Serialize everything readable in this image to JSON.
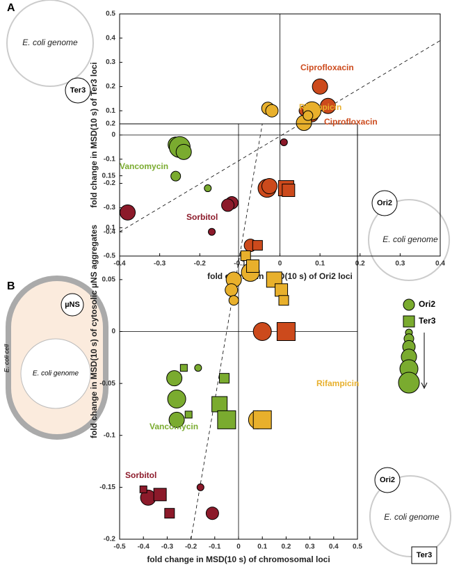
{
  "panel_labels": [
    "A",
    "B"
  ],
  "schematics": {
    "a_genome_1": "E. coli genome",
    "a_ter3": "Ter3",
    "a_genome_2": "E. coli genome",
    "a_ori2": "Ori2",
    "b_cell": "E. coli cell",
    "b_mns": "µNS",
    "b_genome_1": "E. coli genome",
    "b_genome_2": "E. coli genome",
    "b_ori2": "Ori2",
    "b_ter3": "Ter3"
  },
  "chart_data": [
    {
      "type": "scatter",
      "x_label": "fold change in MSD(10 s) of Ori2 loci",
      "y_label": "fold change in MSD(10 s) of Ter3 loci",
      "xlim": [
        -0.4,
        0.4
      ],
      "xticks": [
        -0.4,
        -0.3,
        -0.2,
        -0.1,
        0,
        0.1,
        0.2,
        0.3,
        0.4
      ],
      "ylim": [
        -0.5,
        0.5
      ],
      "yticks": [
        -0.5,
        -0.4,
        -0.3,
        -0.2,
        -0.1,
        0,
        0.1,
        0.2,
        0.3,
        0.4,
        0.5
      ],
      "series": [
        {
          "name": "Vancomycin",
          "color": "#7aab2f",
          "x": [
            -0.26,
            -0.25,
            -0.24,
            -0.26,
            -0.18
          ],
          "values": [
            -0.04,
            -0.05,
            -0.07,
            -0.17,
            -0.22
          ],
          "sizes": [
            4,
            6,
            4,
            2,
            1
          ]
        },
        {
          "name": "Sorbitol",
          "color": "#8c1a2a",
          "x": [
            -0.38,
            -0.12,
            -0.13,
            -0.17,
            0.01
          ],
          "values": [
            -0.32,
            -0.28,
            -0.29,
            -0.4,
            -0.03
          ],
          "sizes": [
            4,
            3,
            3,
            1,
            1
          ]
        },
        {
          "name": "Ciprofloxacin",
          "color": "#cc4a1c",
          "x": [
            0.1,
            0.12,
            0.08,
            0.06
          ],
          "values": [
            0.2,
            0.12,
            0.08,
            0.1
          ],
          "sizes": [
            4,
            4,
            3,
            2
          ]
        },
        {
          "name": "Rifampicin",
          "color": "#e8b02c",
          "x": [
            -0.03,
            -0.02,
            0.08,
            0.06,
            0.07
          ],
          "values": [
            0.11,
            0.1,
            0.1,
            0.05,
            0.08
          ],
          "sizes": [
            3,
            3,
            5,
            4,
            2
          ]
        }
      ]
    },
    {
      "type": "scatter",
      "x_label": "fold change in MSD(10 s) of chromosomal loci",
      "y_label": "fold change in MSD(10 s) of cytosolic µNS aggregates",
      "xlim": [
        -0.5,
        0.5
      ],
      "xticks": [
        -0.5,
        -0.4,
        -0.3,
        -0.2,
        -0.1,
        0,
        0.1,
        0.2,
        0.3,
        0.4,
        0.5
      ],
      "ylim": [
        -0.2,
        0.2
      ],
      "yticks": [
        -0.2,
        -0.15,
        -0.1,
        -0.05,
        0,
        0.05,
        0.1,
        0.15,
        0.2
      ],
      "legend": [
        {
          "name": "Ori2",
          "marker": "circle"
        },
        {
          "name": "Ter3",
          "marker": "square"
        }
      ],
      "size_legend": [
        1,
        2,
        3,
        4,
        5,
        6
      ],
      "series": [
        {
          "name": "Ciprofloxacin",
          "color": "#cc4a1c",
          "x": [
            0.12,
            0.13,
            0.2,
            0.21,
            0.05,
            0.08,
            0.1,
            0.2
          ],
          "values": [
            0.138,
            0.14,
            0.138,
            0.136,
            0.083,
            0.083,
            0.0,
            0.0
          ],
          "sizes": [
            5,
            4,
            4,
            3,
            3,
            2,
            5,
            5
          ],
          "markers": [
            "circle",
            "circle",
            "square",
            "square",
            "circle",
            "square",
            "circle",
            "square"
          ]
        },
        {
          "name": "Rifampicin",
          "color": "#e8b02c",
          "x": [
            -0.02,
            0.05,
            -0.03,
            -0.02,
            0.08,
            0.03,
            0.06,
            0.15,
            0.18,
            0.19,
            0.1
          ],
          "values": [
            0.05,
            0.057,
            0.04,
            0.03,
            -0.085,
            0.073,
            0.063,
            0.05,
            0.04,
            0.03,
            -0.085
          ],
          "sizes": [
            4,
            5,
            3,
            2,
            5,
            2,
            3,
            4,
            3,
            2,
            5
          ],
          "markers": [
            "circle",
            "circle",
            "circle",
            "circle",
            "circle",
            "square",
            "square",
            "square",
            "square",
            "square",
            "square"
          ]
        },
        {
          "name": "Vancomycin",
          "color": "#7aab2f",
          "x": [
            -0.27,
            -0.26,
            -0.26,
            -0.17,
            -0.23,
            -0.21,
            -0.06,
            -0.08,
            -0.05
          ],
          "values": [
            -0.045,
            -0.065,
            -0.085,
            -0.035,
            -0.035,
            -0.08,
            -0.045,
            -0.07,
            -0.085
          ],
          "sizes": [
            4,
            5,
            4,
            1,
            1,
            1,
            2,
            4,
            5
          ],
          "markers": [
            "circle",
            "circle",
            "circle",
            "circle",
            "square",
            "square",
            "square",
            "square",
            "square"
          ]
        },
        {
          "name": "Sorbitol",
          "color": "#8c1a2a",
          "x": [
            -0.38,
            -0.11,
            -0.16,
            -0.4,
            -0.33,
            -0.29
          ],
          "values": [
            -0.16,
            -0.175,
            -0.15,
            -0.152,
            -0.157,
            -0.175
          ],
          "sizes": [
            4,
            3,
            1,
            1,
            3,
            2
          ],
          "markers": [
            "circle",
            "circle",
            "circle",
            "square",
            "square",
            "square"
          ]
        }
      ]
    }
  ]
}
